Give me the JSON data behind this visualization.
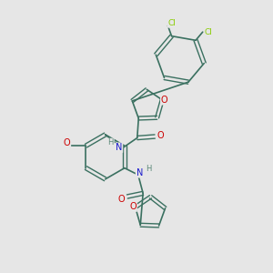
{
  "bg_color": "#e6e6e6",
  "bond_color": "#3a7060",
  "atom_colors": {
    "O": "#cc0000",
    "N": "#1a1acc",
    "Cl": "#88cc00",
    "H": "#5a8878",
    "C": "#3a7060"
  },
  "figsize": [
    3.0,
    3.0
  ],
  "dpi": 100,
  "xlim": [
    0,
    10
  ],
  "ylim": [
    0,
    10
  ]
}
